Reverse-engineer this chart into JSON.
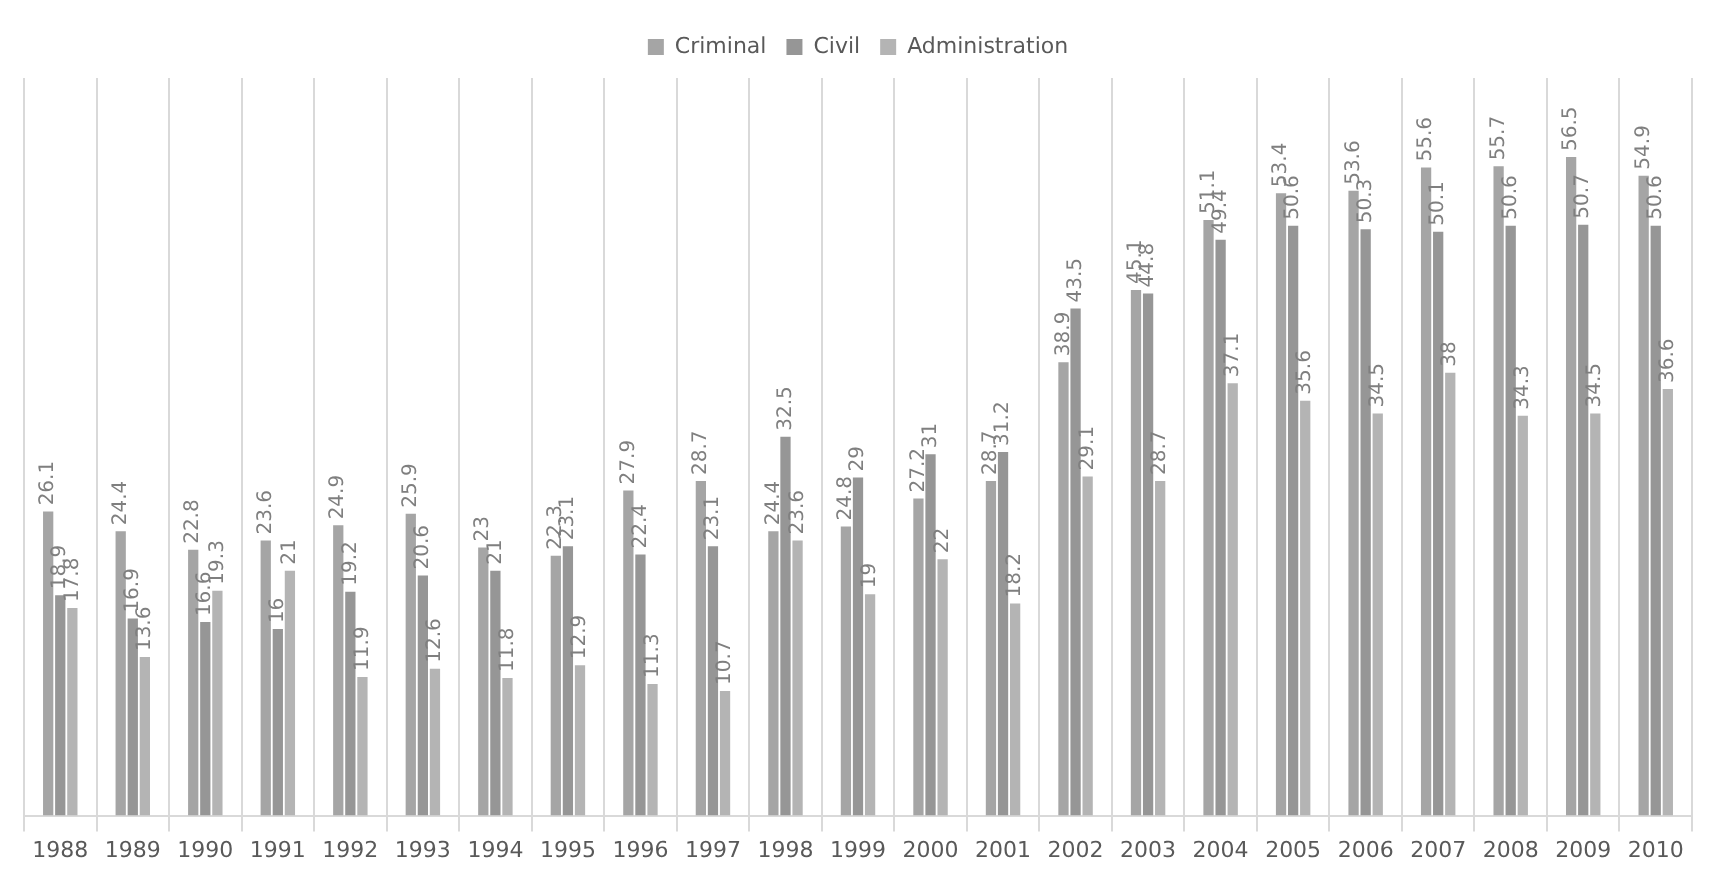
{
  "chart_data": {
    "type": "bar",
    "categories": [
      "1988",
      "1989",
      "1990",
      "1991",
      "1992",
      "1993",
      "1994",
      "1995",
      "1996",
      "1997",
      "1998",
      "1999",
      "2000",
      "2001",
      "2002",
      "2003",
      "2004",
      "2005",
      "2006",
      "2007",
      "2008",
      "2009",
      "2010"
    ],
    "series": [
      {
        "name": "Criminal",
        "color": "#a5a5a5",
        "values": [
          26.1,
          24.4,
          22.8,
          23.6,
          24.9,
          25.9,
          23,
          22.3,
          27.9,
          28.7,
          24.4,
          24.8,
          27.2,
          28.7,
          38.9,
          45.1,
          51.1,
          53.4,
          53.6,
          55.6,
          55.7,
          56.5,
          54.9
        ]
      },
      {
        "name": "Civil",
        "color": "#969696",
        "values": [
          18.9,
          16.9,
          16.6,
          16,
          19.2,
          20.6,
          21,
          23.1,
          22.4,
          23.1,
          32.5,
          29,
          31,
          31.2,
          43.5,
          44.8,
          49.4,
          50.6,
          50.3,
          50.1,
          50.6,
          50.7,
          50.6
        ]
      },
      {
        "name": "Administration",
        "color": "#b4b4b4",
        "values": [
          17.8,
          13.6,
          19.3,
          21,
          11.9,
          12.6,
          11.8,
          12.9,
          11.3,
          10.7,
          23.6,
          19,
          22,
          18.2,
          29.1,
          28.7,
          37.1,
          35.6,
          34.5,
          38,
          34.3,
          34.5,
          36.6
        ]
      }
    ],
    "data_labels": true,
    "grid": "x",
    "legend": "top",
    "tick_labels": "x"
  }
}
